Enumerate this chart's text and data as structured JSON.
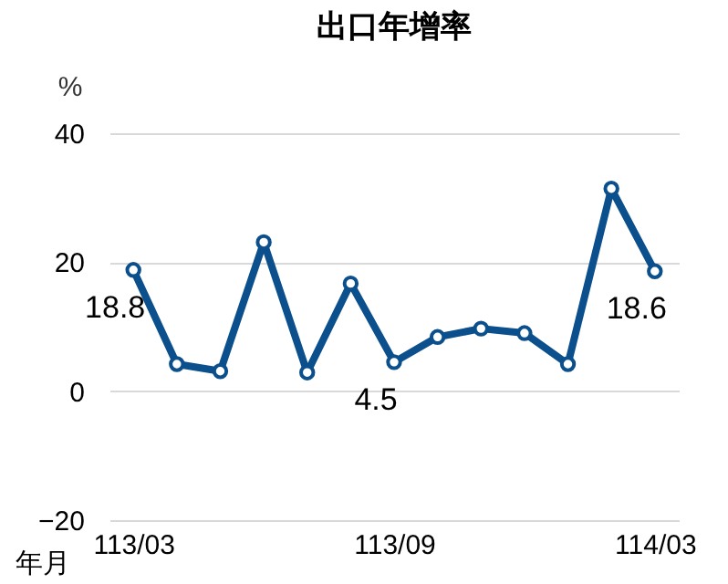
{
  "chart_data": {
    "type": "line",
    "title": "出口年增率",
    "xlabel": "年月",
    "ylabel": "%",
    "categories": [
      "113/03",
      null,
      null,
      null,
      null,
      null,
      "113/09",
      null,
      null,
      null,
      null,
      null,
      "114/03"
    ],
    "values": [
      18.8,
      4.2,
      3.1,
      23.1,
      2.9,
      16.7,
      4.5,
      8.4,
      9.7,
      9.0,
      4.2,
      31.4,
      18.6
    ],
    "value_labels": [
      "18.8",
      null,
      null,
      null,
      null,
      null,
      "4.5",
      null,
      null,
      null,
      null,
      null,
      "18.6"
    ],
    "color": "#0b4f8c",
    "ylim": [
      -20,
      40
    ],
    "yticks": [
      -20,
      0,
      20,
      40
    ],
    "grid": "y",
    "marker": "circle"
  }
}
